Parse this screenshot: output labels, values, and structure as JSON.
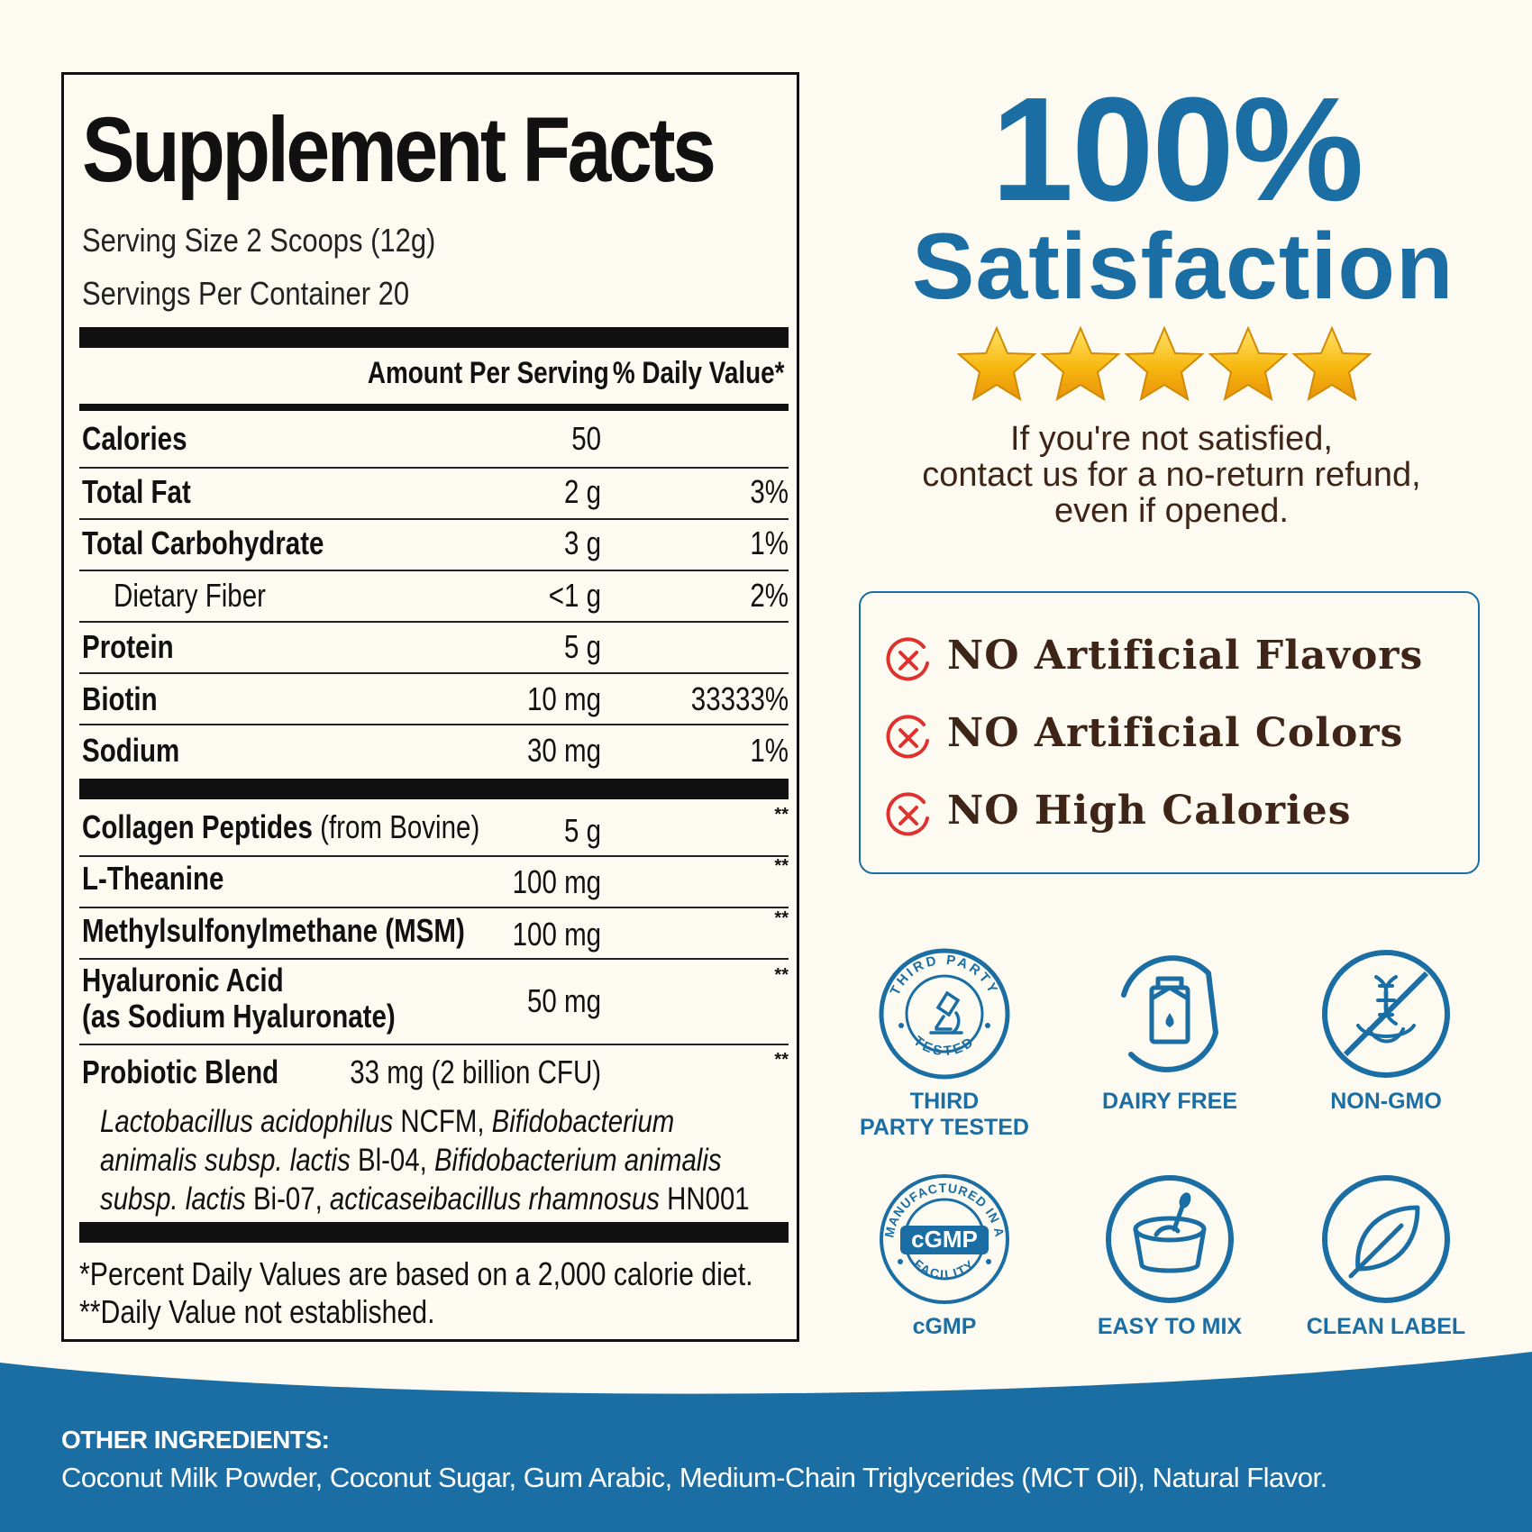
{
  "facts": {
    "title": "Supplement Facts",
    "serving_size": "Serving Size 2 Scoops (12g)",
    "servings_per_container": "Servings Per Container 20",
    "col_amount": "Amount Per Serving",
    "col_dv": "% Daily Value*",
    "rows": [
      {
        "name": "Calories",
        "amount": "50",
        "dv": ""
      },
      {
        "name": "Total Fat",
        "amount": "2 g",
        "dv": "3%"
      },
      {
        "name": "Total Carbohydrate",
        "amount": "3 g",
        "dv": "1%"
      },
      {
        "name": "Dietary Fiber",
        "amount": "<1 g",
        "dv": "2%"
      },
      {
        "name": "Protein",
        "amount": "5 g",
        "dv": ""
      },
      {
        "name": "Biotin",
        "amount": "10 mg",
        "dv": "33333%"
      },
      {
        "name": "Sodium",
        "amount": "30 mg",
        "dv": "1%"
      }
    ],
    "blend_rows": [
      {
        "name": "Collagen Peptides",
        "name_extra": "(from Bovine)",
        "amount": "5 g",
        "dv": "**"
      },
      {
        "name": "L-Theanine",
        "amount": "100 mg",
        "dv": "**"
      },
      {
        "name": "Methylsulfonylmethane (MSM)",
        "amount": "100 mg",
        "dv": "**"
      },
      {
        "name": "Hyaluronic Acid",
        "name_extra": "(as Sodium Hyaluronate)",
        "amount": "50 mg",
        "dv": "**"
      },
      {
        "name": "Probiotic Blend",
        "amount": "33 mg (2 billion CFU)",
        "dv": "**"
      }
    ],
    "probiotic_strains": {
      "s1": "Lactobacillus acidophilus",
      "c1": " NCFM, ",
      "s2": "Bifidobacterium animalis subsp. lactis",
      "c2": " Bl-04, ",
      "s3": "Bifidobacterium animalis subsp. lactis",
      "c3": " Bi-07, ",
      "s4": "acticaseibacillus rhamnosus",
      "c4": " HN001"
    },
    "footnote1": "*Percent Daily Values are based on a 2,000 calorie diet.",
    "footnote2": "**Daily Value not established."
  },
  "satisfaction": {
    "big": "100%",
    "word": "Satisfaction",
    "stars": 5,
    "line1": "If you're not satisfied,",
    "line2": "contact us for a no-return refund,",
    "line3": "even if opened."
  },
  "no_list": [
    "NO Artificial Flavors",
    "NO Artificial Colors",
    "NO High Calories"
  ],
  "badges": [
    {
      "icon": "microscope-icon",
      "label1": "THIRD",
      "label2": "PARTY TESTED",
      "ring": "THIRD PARTY · TESTED"
    },
    {
      "icon": "milk-carton-icon",
      "label1": "DAIRY FREE",
      "label2": ""
    },
    {
      "icon": "dna-icon",
      "label1": "NON-GMO",
      "label2": ""
    },
    {
      "icon": "cgmp-seal-icon",
      "label1": "cGMP",
      "label2": "",
      "ring_top": "MANUFACTURED IN A",
      "ring_bottom": "FACILITY",
      "center": "cGMP"
    },
    {
      "icon": "mixing-bowl-icon",
      "label1": "EASY TO MIX",
      "label2": ""
    },
    {
      "icon": "leaf-icon",
      "label1": "CLEAN LABEL",
      "label2": ""
    }
  ],
  "other_ingredients": {
    "title": "OTHER INGREDIENTS:",
    "text": "Coconut Milk Powder, Coconut Sugar, Gum Arabic, Medium-Chain Triglycerides (MCT Oil), Natural Flavor."
  },
  "colors": {
    "blue": "#1a6ea3",
    "brown": "#3e2517",
    "red": "#e0312f",
    "cream": "#fdfbf1",
    "star": "#f5b50f"
  }
}
